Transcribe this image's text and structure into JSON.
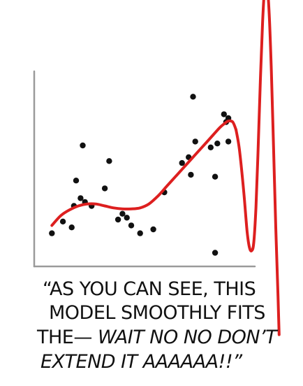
{
  "chart_data": {
    "type": "scatter",
    "title": "",
    "xlabel": "",
    "ylabel": "",
    "xlim": [
      0,
      100
    ],
    "ylim": [
      0,
      100
    ],
    "grid": false,
    "points": [
      {
        "x": 8,
        "y": 17
      },
      {
        "x": 13,
        "y": 23
      },
      {
        "x": 17,
        "y": 20
      },
      {
        "x": 18,
        "y": 31
      },
      {
        "x": 21,
        "y": 35
      },
      {
        "x": 23,
        "y": 33
      },
      {
        "x": 19,
        "y": 44
      },
      {
        "x": 22,
        "y": 62
      },
      {
        "x": 26,
        "y": 31
      },
      {
        "x": 32,
        "y": 40
      },
      {
        "x": 34,
        "y": 54
      },
      {
        "x": 38,
        "y": 24
      },
      {
        "x": 40,
        "y": 27
      },
      {
        "x": 42,
        "y": 25
      },
      {
        "x": 44,
        "y": 21
      },
      {
        "x": 48,
        "y": 17
      },
      {
        "x": 54,
        "y": 19
      },
      {
        "x": 59,
        "y": 38
      },
      {
        "x": 67,
        "y": 53
      },
      {
        "x": 70,
        "y": 56
      },
      {
        "x": 71,
        "y": 47
      },
      {
        "x": 72,
        "y": 87
      },
      {
        "x": 73,
        "y": 64
      },
      {
        "x": 80,
        "y": 61
      },
      {
        "x": 82,
        "y": 46
      },
      {
        "x": 83,
        "y": 63
      },
      {
        "x": 86,
        "y": 78
      },
      {
        "x": 87,
        "y": 74
      },
      {
        "x": 88,
        "y": 76
      },
      {
        "x": 88,
        "y": 64
      },
      {
        "x": 82,
        "y": 7
      }
    ],
    "fit_curve": {
      "color": "#dd1f1f",
      "points": [
        [
          8,
          21
        ],
        [
          12,
          26
        ],
        [
          16,
          29
        ],
        [
          20,
          31
        ],
        [
          24,
          32
        ],
        [
          28,
          32
        ],
        [
          32,
          31
        ],
        [
          36,
          30
        ],
        [
          40,
          29.5
        ],
        [
          44,
          29.5
        ],
        [
          48,
          30
        ],
        [
          52,
          32
        ],
        [
          56,
          36
        ],
        [
          60,
          41
        ],
        [
          64,
          46
        ],
        [
          68,
          51
        ],
        [
          72,
          56
        ],
        [
          76,
          61
        ],
        [
          80,
          66
        ],
        [
          84,
          71
        ],
        [
          86,
          73
        ],
        [
          88,
          74.5
        ],
        [
          90,
          74
        ],
        [
          91.5,
          70
        ]
      ]
    },
    "extension_curve": {
      "color": "#dd1f1f",
      "points": [
        [
          91.5,
          70
        ],
        [
          93,
          60
        ],
        [
          95,
          38
        ],
        [
          96.5,
          18
        ],
        [
          97.5,
          10
        ],
        [
          98.5,
          8
        ],
        [
          99.5,
          12
        ],
        [
          100.5,
          30
        ],
        [
          101.5,
          60
        ],
        [
          102.5,
          95
        ],
        [
          103.5,
          125
        ],
        [
          104.5,
          143
        ],
        [
          105.5,
          144
        ],
        [
          106.5,
          130
        ],
        [
          107.5,
          100
        ],
        [
          108.5,
          60
        ],
        [
          109.5,
          20
        ],
        [
          110.5,
          -15
        ],
        [
          111,
          -35
        ]
      ]
    },
    "marker_color": "#111111",
    "axis_color": "#9a9a9a"
  },
  "caption": {
    "lines": [
      {
        "plain": "“AS YOU CAN SEE, THIS",
        "italic": ""
      },
      {
        "plain": "MODEL SMOOTHLY FITS",
        "italic": ""
      },
      {
        "plain": "THE— ",
        "italic": "WAIT NO NO DON’T"
      },
      {
        "plain": "",
        "italic": "EXTEND IT AAAAAA!!”"
      }
    ]
  }
}
